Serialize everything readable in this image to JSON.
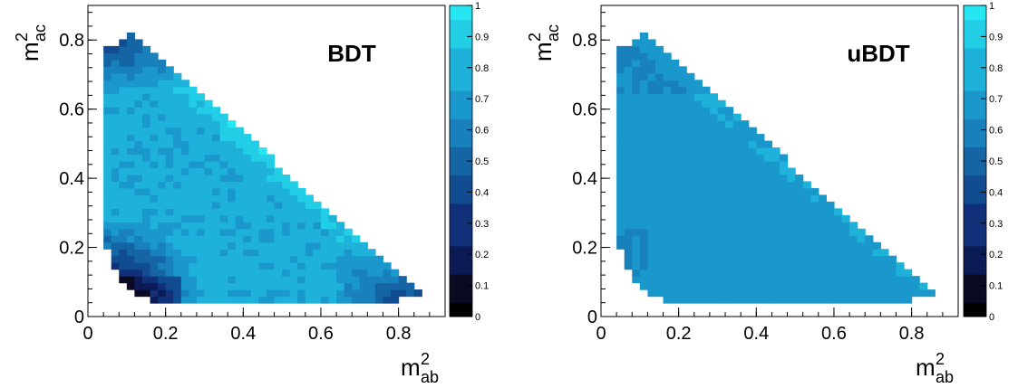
{
  "chart_data": [
    {
      "type": "heatmap",
      "title": "BDT",
      "variant": "bdt",
      "xlabel_base": "m",
      "xlabel_sup": "2",
      "xlabel_sub": "ab",
      "ylabel_base": "m",
      "ylabel_sup": "2",
      "ylabel_sub": "ac",
      "xlim": [
        0,
        0.92
      ],
      "ylim": [
        0,
        0.9
      ],
      "xticks": [
        "0",
        "0.2",
        "0.4",
        "0.6",
        "0.8"
      ],
      "yticks": [
        "0",
        "0.2",
        "0.4",
        "0.6",
        "0.8"
      ],
      "xtick_values": [
        0,
        0.2,
        0.4,
        0.6,
        0.8
      ],
      "ytick_values": [
        0,
        0.2,
        0.4,
        0.6,
        0.8
      ],
      "zlim": [
        0,
        1
      ],
      "colorbar_ticks": [
        "0",
        "0.1",
        "0.2",
        "0.3",
        "0.4",
        "0.5",
        "0.6",
        "0.7",
        "0.8",
        "0.9",
        "1"
      ],
      "colorbar_values": [
        0,
        0.1,
        0.2,
        0.3,
        0.4,
        0.5,
        0.6,
        0.7,
        0.8,
        0.9,
        1
      ],
      "palette": [
        "#000000",
        "#0a0a22",
        "#0c1a55",
        "#10307a",
        "#124c90",
        "#1565a5",
        "#1880bb",
        "#1a98cc",
        "#1eb2da",
        "#22cde6",
        "#26e6f2"
      ],
      "bins": 46
    },
    {
      "type": "heatmap",
      "title": "uBDT",
      "variant": "ubdt",
      "xlabel_base": "m",
      "xlabel_sup": "2",
      "xlabel_sub": "ab",
      "ylabel_base": "m",
      "ylabel_sup": "2",
      "ylabel_sub": "ac",
      "xlim": [
        0,
        0.92
      ],
      "ylim": [
        0,
        0.9
      ],
      "xticks": [
        "0",
        "0.2",
        "0.4",
        "0.6",
        "0.8"
      ],
      "yticks": [
        "0",
        "0.2",
        "0.4",
        "0.6",
        "0.8"
      ],
      "xtick_values": [
        0,
        0.2,
        0.4,
        0.6,
        0.8
      ],
      "ytick_values": [
        0,
        0.2,
        0.4,
        0.6,
        0.8
      ],
      "zlim": [
        0,
        1
      ],
      "colorbar_ticks": [
        "0",
        "0.1",
        "0.2",
        "0.3",
        "0.4",
        "0.5",
        "0.6",
        "0.7",
        "0.8",
        "0.9",
        "1"
      ],
      "colorbar_values": [
        0,
        0.1,
        0.2,
        0.3,
        0.4,
        0.5,
        0.6,
        0.7,
        0.8,
        0.9,
        1
      ],
      "palette": [
        "#000000",
        "#0a0a22",
        "#0c1a55",
        "#10307a",
        "#124c90",
        "#1565a5",
        "#1880bb",
        "#1a98cc",
        "#1eb2da",
        "#22cde6",
        "#26e6f2"
      ],
      "bins": 46
    }
  ]
}
